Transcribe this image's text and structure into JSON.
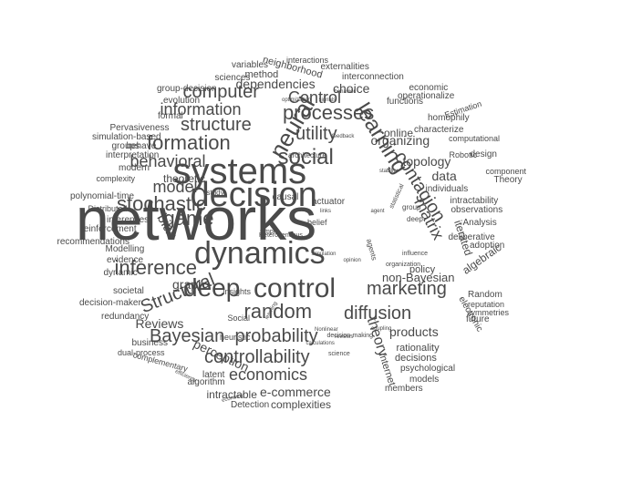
{
  "word_cloud": {
    "text_color": "#4a4a4a",
    "background": "#ffffff",
    "words": [
      {
        "text": "networks",
        "weight": 100
      },
      {
        "text": "decision",
        "weight": 70
      },
      {
        "text": "systems",
        "weight": 68
      },
      {
        "text": "dynamics",
        "weight": 60
      },
      {
        "text": "control",
        "weight": 48
      },
      {
        "text": "neural",
        "weight": 44
      },
      {
        "text": "learning",
        "weight": 40
      },
      {
        "text": "contagion",
        "weight": 34
      },
      {
        "text": "social",
        "weight": 34
      },
      {
        "text": "random",
        "weight": 33
      },
      {
        "text": "deep",
        "weight": 34
      },
      {
        "text": "processes",
        "weight": 30
      },
      {
        "text": "stochastic",
        "weight": 30
      },
      {
        "text": "game",
        "weight": 30
      },
      {
        "text": "inference",
        "weight": 30
      },
      {
        "text": "marketing",
        "weight": 30
      },
      {
        "text": "formation",
        "weight": 30
      },
      {
        "text": "diffusion",
        "weight": 28
      },
      {
        "text": "Structural",
        "weight": 26
      },
      {
        "text": "probability",
        "weight": 28
      },
      {
        "text": "controllability",
        "weight": 28
      },
      {
        "text": "Bayesian",
        "weight": 28
      },
      {
        "text": "economics",
        "weight": 26
      },
      {
        "text": "utility",
        "weight": 26
      },
      {
        "text": "computer",
        "weight": 26
      },
      {
        "text": "structure",
        "weight": 26
      },
      {
        "text": "information",
        "weight": 26
      },
      {
        "text": "behavioral",
        "weight": 26
      },
      {
        "text": "model",
        "weight": 24
      },
      {
        "text": "matrix",
        "weight": 24
      },
      {
        "text": "theory",
        "weight": 22
      },
      {
        "text": "Control",
        "weight": 22
      },
      {
        "text": "bias",
        "weight": 22
      },
      {
        "text": "graph",
        "weight": 20
      },
      {
        "text": "organizing",
        "weight": 18
      },
      {
        "text": "products",
        "weight": 18
      },
      {
        "text": "non-Bayesian",
        "weight": 18
      },
      {
        "text": "Reviews",
        "weight": 18
      },
      {
        "text": "perception",
        "weight": 18
      },
      {
        "text": "topology",
        "weight": 17
      },
      {
        "text": "data",
        "weight": 17
      },
      {
        "text": "dependencies",
        "weight": 16
      },
      {
        "text": "choice",
        "weight": 16
      },
      {
        "text": "e-commerce",
        "weight": 16
      },
      {
        "text": "complexities",
        "weight": 15
      },
      {
        "text": "intractable",
        "weight": 14
      },
      {
        "text": "algebraic",
        "weight": 14
      },
      {
        "text": "iterated",
        "weight": 14
      },
      {
        "text": "theoretic",
        "weight": 13
      },
      {
        "text": "online",
        "weight": 13
      },
      {
        "text": "Internet",
        "weight": 12
      },
      {
        "text": "electronic",
        "weight": 11
      },
      {
        "text": "rationality",
        "weight": 12
      },
      {
        "text": "decisions",
        "weight": 12
      },
      {
        "text": "policy",
        "weight": 12
      },
      {
        "text": "method",
        "weight": 12
      },
      {
        "text": "neighborhood",
        "weight": 12
      },
      {
        "text": "interconnection",
        "weight": 11
      },
      {
        "text": "functions",
        "weight": 11
      },
      {
        "text": "psychological",
        "weight": 11
      },
      {
        "text": "members",
        "weight": 11
      },
      {
        "text": "models",
        "weight": 11
      },
      {
        "text": "algorithm",
        "weight": 11
      },
      {
        "text": "latent",
        "weight": 11
      },
      {
        "text": "Detection",
        "weight": 11
      },
      {
        "text": "causal",
        "weight": 11
      },
      {
        "text": "actuator",
        "weight": 11
      },
      {
        "text": "belief",
        "weight": 10
      },
      {
        "text": "individuals",
        "weight": 11
      },
      {
        "text": "intractability",
        "weight": 10
      },
      {
        "text": "observations",
        "weight": 10
      },
      {
        "text": "Analysis",
        "weight": 10
      },
      {
        "text": "deliberative",
        "weight": 10
      },
      {
        "text": "adoption",
        "weight": 10
      },
      {
        "text": "Random",
        "weight": 10
      },
      {
        "text": "reputation",
        "weight": 9
      },
      {
        "text": "symmetries",
        "weight": 9
      },
      {
        "text": "future",
        "weight": 10
      },
      {
        "text": "homophily",
        "weight": 10
      },
      {
        "text": "characterize",
        "weight": 10
      },
      {
        "text": "computational",
        "weight": 9
      },
      {
        "text": "design",
        "weight": 10
      },
      {
        "text": "component",
        "weight": 9
      },
      {
        "text": "Theory",
        "weight": 10
      },
      {
        "text": "Robotic",
        "weight": 9
      },
      {
        "text": "economic",
        "weight": 10
      },
      {
        "text": "operationalize",
        "weight": 10
      },
      {
        "text": "Estimation",
        "weight": 9
      },
      {
        "text": "externalities",
        "weight": 10
      },
      {
        "text": "interactions",
        "weight": 9
      },
      {
        "text": "variables",
        "weight": 10
      },
      {
        "text": "sciences",
        "weight": 10
      },
      {
        "text": "group-decision",
        "weight": 10
      },
      {
        "text": "evolution",
        "weight": 10
      },
      {
        "text": "formal",
        "weight": 10
      },
      {
        "text": "Pervasiveness",
        "weight": 10
      },
      {
        "text": "simulation-based",
        "weight": 10
      },
      {
        "text": "groups",
        "weight": 10
      },
      {
        "text": "behave",
        "weight": 10
      },
      {
        "text": "interpretation",
        "weight": 10
      },
      {
        "text": "modern",
        "weight": 10
      },
      {
        "text": "complexity",
        "weight": 9
      },
      {
        "text": "polynomial-time",
        "weight": 10
      },
      {
        "text": "Distributed",
        "weight": 9
      },
      {
        "text": "inferences",
        "weight": 10
      },
      {
        "text": "reinforcement",
        "weight": 10
      },
      {
        "text": "recommendations",
        "weight": 10
      },
      {
        "text": "evidence",
        "weight": 10
      },
      {
        "text": "dynamic",
        "weight": 10
      },
      {
        "text": "Modelling",
        "weight": 10
      },
      {
        "text": "societal",
        "weight": 10
      },
      {
        "text": "decision-maker",
        "weight": 10
      },
      {
        "text": "redundancy",
        "weight": 10
      },
      {
        "text": "business",
        "weight": 10
      },
      {
        "text": "dual-process",
        "weight": 9
      },
      {
        "text": "complementary",
        "weight": 9
      },
      {
        "text": "heuristic",
        "weight": 9
      },
      {
        "text": "Social",
        "weight": 9
      },
      {
        "text": "insights",
        "weight": 9
      },
      {
        "text": "study",
        "weight": 8
      },
      {
        "text": "architecture",
        "weight": 8
      },
      {
        "text": "simple",
        "weight": 7
      },
      {
        "text": "Heterogeneous",
        "weight": 7
      },
      {
        "text": "agents",
        "weight": 8
      },
      {
        "text": "deep",
        "weight": 8
      },
      {
        "text": "group",
        "weight": 8
      },
      {
        "text": "statistical",
        "weight": 7
      },
      {
        "text": "decision-making",
        "weight": 7
      },
      {
        "text": "science",
        "weight": 7
      },
      {
        "text": "reviews",
        "weight": 6
      },
      {
        "text": "calculations",
        "weight": 6
      },
      {
        "text": "learning",
        "weight": 6
      },
      {
        "text": "influence",
        "weight": 7
      },
      {
        "text": "organization",
        "weight": 7
      },
      {
        "text": "efficiency",
        "weight": 6
      },
      {
        "text": "economy",
        "weight": 6
      },
      {
        "text": "Nonlinear",
        "weight": 6
      },
      {
        "text": "agent",
        "weight": 6
      },
      {
        "text": "links",
        "weight": 6
      },
      {
        "text": "feedback",
        "weight": 6
      },
      {
        "text": "simulation",
        "weight": 6
      },
      {
        "text": "opinion",
        "weight": 6
      },
      {
        "text": "behavior",
        "weight": 6
      },
      {
        "text": "optimization",
        "weight": 6
      },
      {
        "text": "stability",
        "weight": 6
      },
      {
        "text": "signals",
        "weight": 6
      },
      {
        "text": "coupling",
        "weight": 6
      }
    ]
  }
}
